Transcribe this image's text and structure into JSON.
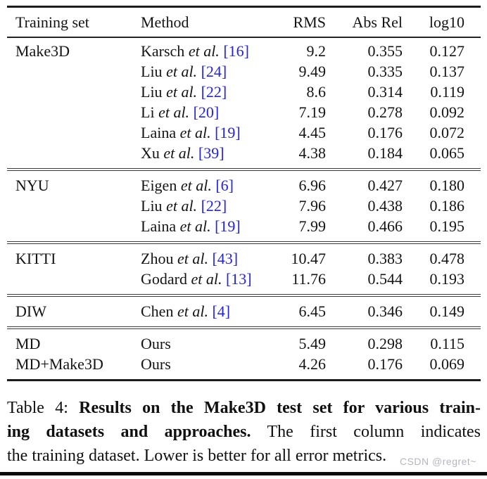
{
  "table": {
    "citation_color": "#2424dd",
    "headers": {
      "training_set": "Training set",
      "method": "Method",
      "rms": "RMS",
      "abs_rel": "Abs Rel",
      "log10": "log10"
    },
    "rows": [
      {
        "training_set": "Make3D",
        "author": "Karsch",
        "etal": "et al.",
        "cite": "[16]",
        "rms": "9.2",
        "abs_rel": "0.355",
        "log10": "0.127"
      },
      {
        "training_set": "",
        "author": "Liu",
        "etal": "et al.",
        "cite": "[24]",
        "rms": "9.49",
        "abs_rel": "0.335",
        "log10": "0.137"
      },
      {
        "training_set": "",
        "author": "Liu",
        "etal": "et al.",
        "cite": "[22]",
        "rms": "8.6",
        "abs_rel": "0.314",
        "log10": "0.119"
      },
      {
        "training_set": "",
        "author": "Li",
        "etal": "et al.",
        "cite": "[20]",
        "rms": "7.19",
        "abs_rel": "0.278",
        "log10": "0.092"
      },
      {
        "training_set": "",
        "author": "Laina",
        "etal": "et al.",
        "cite": "[19]",
        "rms": "4.45",
        "abs_rel": "0.176",
        "log10": "0.072"
      },
      {
        "training_set": "",
        "author": "Xu",
        "etal": "et al.",
        "cite": "[39]",
        "rms": "4.38",
        "abs_rel": "0.184",
        "log10": "0.065"
      },
      {
        "training_set": "NYU",
        "author": "Eigen",
        "etal": "et al.",
        "cite": "[6]",
        "rms": "6.96",
        "abs_rel": "0.427",
        "log10": "0.180"
      },
      {
        "training_set": "",
        "author": "Liu",
        "etal": "et al.",
        "cite": "[22]",
        "rms": "7.96",
        "abs_rel": "0.438",
        "log10": "0.186"
      },
      {
        "training_set": "",
        "author": "Laina",
        "etal": "et al.",
        "cite": "[19]",
        "rms": "7.99",
        "abs_rel": "0.466",
        "log10": "0.195"
      },
      {
        "training_set": "KITTI",
        "author": "Zhou",
        "etal": "et al.",
        "cite": "[43]",
        "rms": "10.47",
        "abs_rel": "0.383",
        "log10": "0.478"
      },
      {
        "training_set": "",
        "author": "Godard",
        "etal": "et al.",
        "cite": "[13]",
        "rms": "11.76",
        "abs_rel": "0.544",
        "log10": "0.193"
      },
      {
        "training_set": "DIW",
        "author": "Chen",
        "etal": "et al.",
        "cite": "[4]",
        "rms": "6.45",
        "abs_rel": "0.346",
        "log10": "0.149"
      },
      {
        "training_set": "MD",
        "author": "Ours",
        "etal": "",
        "cite": "",
        "rms": "5.49",
        "abs_rel": "0.298",
        "log10": "0.115"
      },
      {
        "training_set": "MD+Make3D",
        "author": "Ours",
        "etal": "",
        "cite": "",
        "rms": "4.26",
        "abs_rel": "0.176",
        "log10": "0.069"
      }
    ]
  },
  "caption": {
    "line1_normal": "Table 4: ",
    "line1_bold": "Results on the Make3D test set for various train-",
    "line2_bold": "ing datasets and approaches.",
    "line2_normal": "  The first column indicates",
    "line3_normal": "the training dataset. Lower is better for all error metrics."
  },
  "watermark": "CSDN @regret~"
}
